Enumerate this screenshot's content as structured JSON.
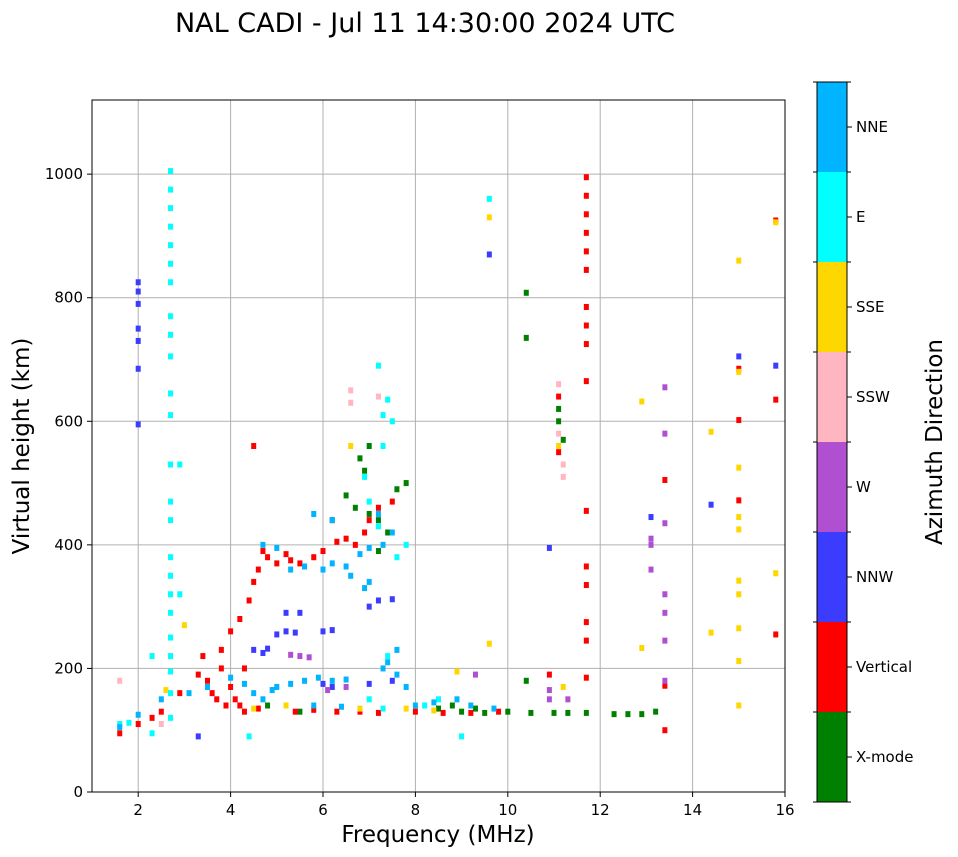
{
  "chart_data": {
    "type": "scatter",
    "title": "NAL CADI - Jul 11 14:30:00 2024 UTC",
    "xlabel": "Frequency (MHz)",
    "ylabel": "Virtual height (km)",
    "xlim": [
      1,
      16
    ],
    "ylim": [
      0,
      1120
    ],
    "xticks": [
      "2",
      "4",
      "6",
      "8",
      "10",
      "12",
      "14",
      "16"
    ],
    "yticks": [
      "0",
      "200",
      "400",
      "600",
      "800",
      "1000"
    ],
    "grid": true,
    "colorbar": {
      "label": "Azimuth Direction",
      "categories": [
        {
          "name": "X-mode",
          "color": "#008000"
        },
        {
          "name": "Vertical",
          "color": "#ff0000"
        },
        {
          "name": "NNW",
          "color": "#3c3cff"
        },
        {
          "name": "W",
          "color": "#b050d0"
        },
        {
          "name": "SSW",
          "color": "#ffb6c1"
        },
        {
          "name": "SSE",
          "color": "#ffd700"
        },
        {
          "name": "E",
          "color": "#00ffff"
        },
        {
          "name": "NNE",
          "color": "#00b4ff"
        }
      ]
    },
    "series": [
      {
        "name": "X-mode",
        "color": "#008000",
        "points": [
          [
            6.5,
            480
          ],
          [
            6.7,
            460
          ],
          [
            7.0,
            450
          ],
          [
            7.2,
            440
          ],
          [
            7.4,
            420
          ],
          [
            7.6,
            490
          ],
          [
            7.8,
            500
          ],
          [
            6.2,
            440
          ],
          [
            7.0,
            560
          ],
          [
            6.9,
            520
          ],
          [
            8.5,
            135
          ],
          [
            9.0,
            130
          ],
          [
            9.5,
            128
          ],
          [
            10.0,
            130
          ],
          [
            10.5,
            128
          ],
          [
            11.0,
            128
          ],
          [
            11.3,
            128
          ],
          [
            11.7,
            128
          ],
          [
            12.3,
            126
          ],
          [
            12.6,
            126
          ],
          [
            12.9,
            126
          ],
          [
            13.2,
            130
          ],
          [
            10.4,
            180
          ],
          [
            10.4,
            735
          ],
          [
            10.4,
            808
          ],
          [
            11.1,
            600
          ],
          [
            11.1,
            620
          ],
          [
            11.2,
            570
          ],
          [
            7.2,
            390
          ],
          [
            6.8,
            540
          ],
          [
            5.5,
            130
          ],
          [
            4.8,
            140
          ],
          [
            8.8,
            140
          ],
          [
            9.3,
            135
          ]
        ]
      },
      {
        "name": "Vertical",
        "color": "#ff0000",
        "points": [
          [
            1.6,
            95
          ],
          [
            2.0,
            110
          ],
          [
            2.3,
            120
          ],
          [
            2.5,
            130
          ],
          [
            2.9,
            160
          ],
          [
            3.3,
            190
          ],
          [
            3.4,
            220
          ],
          [
            3.5,
            180
          ],
          [
            3.6,
            160
          ],
          [
            3.7,
            150
          ],
          [
            3.8,
            200
          ],
          [
            3.9,
            140
          ],
          [
            4.0,
            170
          ],
          [
            4.0,
            260
          ],
          [
            4.1,
            150
          ],
          [
            4.2,
            280
          ],
          [
            4.2,
            140
          ],
          [
            4.3,
            130
          ],
          [
            4.4,
            310
          ],
          [
            4.5,
            340
          ],
          [
            4.6,
            360
          ],
          [
            4.6,
            135
          ],
          [
            4.7,
            390
          ],
          [
            4.8,
            380
          ],
          [
            5.0,
            370
          ],
          [
            5.2,
            385
          ],
          [
            5.3,
            375
          ],
          [
            5.5,
            370
          ],
          [
            5.8,
            380
          ],
          [
            6.0,
            390
          ],
          [
            6.3,
            405
          ],
          [
            6.5,
            410
          ],
          [
            6.7,
            400
          ],
          [
            6.9,
            420
          ],
          [
            7.0,
            440
          ],
          [
            7.2,
            460
          ],
          [
            7.5,
            470
          ],
          [
            5.4,
            130
          ],
          [
            5.8,
            133
          ],
          [
            6.3,
            130
          ],
          [
            6.8,
            130
          ],
          [
            7.2,
            128
          ],
          [
            8.0,
            130
          ],
          [
            8.6,
            128
          ],
          [
            9.2,
            128
          ],
          [
            9.8,
            130
          ],
          [
            10.9,
            190
          ],
          [
            11.1,
            550
          ],
          [
            11.1,
            640
          ],
          [
            11.7,
            995
          ],
          [
            11.7,
            965
          ],
          [
            11.7,
            935
          ],
          [
            11.7,
            905
          ],
          [
            11.7,
            875
          ],
          [
            11.7,
            845
          ],
          [
            11.7,
            785
          ],
          [
            11.7,
            755
          ],
          [
            11.7,
            725
          ],
          [
            11.7,
            665
          ],
          [
            11.7,
            455
          ],
          [
            11.7,
            365
          ],
          [
            11.7,
            335
          ],
          [
            11.7,
            275
          ],
          [
            11.7,
            245
          ],
          [
            11.7,
            185
          ],
          [
            13.4,
            505
          ],
          [
            13.4,
            172
          ],
          [
            13.4,
            100
          ],
          [
            15.0,
            685
          ],
          [
            15.0,
            602
          ],
          [
            15.0,
            472
          ],
          [
            15.8,
            635
          ],
          [
            15.8,
            255
          ],
          [
            15.8,
            925
          ],
          [
            4.5,
            560
          ],
          [
            4.3,
            200
          ],
          [
            3.8,
            230
          ]
        ]
      },
      {
        "name": "NNW",
        "color": "#3c3cff",
        "points": [
          [
            2.0,
            595
          ],
          [
            2.0,
            685
          ],
          [
            2.0,
            730
          ],
          [
            2.0,
            750
          ],
          [
            2.0,
            790
          ],
          [
            2.0,
            810
          ],
          [
            2.0,
            825
          ],
          [
            4.5,
            230
          ],
          [
            4.7,
            225
          ],
          [
            4.8,
            232
          ],
          [
            5.0,
            255
          ],
          [
            5.2,
            260
          ],
          [
            5.4,
            258
          ],
          [
            5.2,
            290
          ],
          [
            5.5,
            290
          ],
          [
            6.0,
            260
          ],
          [
            6.2,
            262
          ],
          [
            7.0,
            300
          ],
          [
            7.2,
            310
          ],
          [
            7.5,
            312
          ],
          [
            7.0,
            175
          ],
          [
            7.5,
            180
          ],
          [
            6.2,
            170
          ],
          [
            6.0,
            175
          ],
          [
            10.9,
            395
          ],
          [
            13.1,
            445
          ],
          [
            14.4,
            465
          ],
          [
            15.0,
            705
          ],
          [
            15.8,
            690
          ],
          [
            3.3,
            90
          ],
          [
            9.6,
            870
          ]
        ]
      },
      {
        "name": "W",
        "color": "#b050d0",
        "points": [
          [
            5.3,
            222
          ],
          [
            5.5,
            220
          ],
          [
            5.7,
            218
          ],
          [
            10.9,
            165
          ],
          [
            10.9,
            150
          ],
          [
            11.3,
            150
          ],
          [
            13.1,
            360
          ],
          [
            13.1,
            400
          ],
          [
            13.1,
            410
          ],
          [
            13.4,
            655
          ],
          [
            13.4,
            580
          ],
          [
            13.4,
            435
          ],
          [
            13.4,
            320
          ],
          [
            13.4,
            290
          ],
          [
            13.4,
            245
          ],
          [
            13.4,
            180
          ],
          [
            6.1,
            165
          ],
          [
            6.5,
            170
          ],
          [
            9.3,
            190
          ]
        ]
      },
      {
        "name": "SSW",
        "color": "#ffb6c1",
        "points": [
          [
            1.6,
            180
          ],
          [
            6.6,
            650
          ],
          [
            6.6,
            630
          ],
          [
            11.1,
            660
          ],
          [
            11.1,
            580
          ],
          [
            11.2,
            510
          ],
          [
            2.5,
            110
          ],
          [
            7.2,
            640
          ],
          [
            11.2,
            530
          ]
        ]
      },
      {
        "name": "SSE",
        "color": "#ffd700",
        "points": [
          [
            4.5,
            135
          ],
          [
            5.2,
            140
          ],
          [
            6.8,
            135
          ],
          [
            7.8,
            135
          ],
          [
            8.4,
            132
          ],
          [
            8.9,
            195
          ],
          [
            9.6,
            930
          ],
          [
            9.6,
            240
          ],
          [
            12.9,
            632
          ],
          [
            12.9,
            233
          ],
          [
            14.4,
            583
          ],
          [
            14.4,
            258
          ],
          [
            15.0,
            860
          ],
          [
            15.0,
            680
          ],
          [
            15.0,
            525
          ],
          [
            15.0,
            445
          ],
          [
            15.0,
            425
          ],
          [
            15.0,
            342
          ],
          [
            15.0,
            320
          ],
          [
            15.0,
            265
          ],
          [
            15.0,
            212
          ],
          [
            15.0,
            140
          ],
          [
            15.8,
            354
          ],
          [
            15.8,
            922
          ],
          [
            11.1,
            560
          ],
          [
            11.2,
            170
          ],
          [
            6.6,
            560
          ],
          [
            2.6,
            165
          ],
          [
            3.0,
            270
          ]
        ]
      },
      {
        "name": "E",
        "color": "#00ffff",
        "points": [
          [
            1.6,
            110
          ],
          [
            1.8,
            112
          ],
          [
            2.3,
            220
          ],
          [
            2.3,
            95
          ],
          [
            2.7,
            1005
          ],
          [
            2.7,
            975
          ],
          [
            2.7,
            945
          ],
          [
            2.7,
            915
          ],
          [
            2.7,
            885
          ],
          [
            2.7,
            855
          ],
          [
            2.7,
            825
          ],
          [
            2.7,
            770
          ],
          [
            2.7,
            740
          ],
          [
            2.7,
            705
          ],
          [
            2.7,
            645
          ],
          [
            2.7,
            610
          ],
          [
            2.7,
            530
          ],
          [
            2.7,
            470
          ],
          [
            2.7,
            440
          ],
          [
            2.7,
            380
          ],
          [
            2.7,
            350
          ],
          [
            2.7,
            320
          ],
          [
            2.7,
            290
          ],
          [
            2.7,
            250
          ],
          [
            2.7,
            220
          ],
          [
            2.7,
            195
          ],
          [
            2.7,
            160
          ],
          [
            2.7,
            120
          ],
          [
            2.9,
            530
          ],
          [
            2.9,
            320
          ],
          [
            4.4,
            90
          ],
          [
            6.9,
            510
          ],
          [
            7.0,
            470
          ],
          [
            7.2,
            430
          ],
          [
            7.3,
            560
          ],
          [
            7.3,
            610
          ],
          [
            7.4,
            635
          ],
          [
            7.5,
            600
          ],
          [
            7.2,
            690
          ],
          [
            7.6,
            380
          ],
          [
            7.8,
            400
          ],
          [
            8.2,
            140
          ],
          [
            8.5,
            150
          ],
          [
            9.0,
            90
          ],
          [
            9.6,
            960
          ],
          [
            7.4,
            220
          ],
          [
            7.0,
            150
          ],
          [
            7.3,
            135
          ]
        ]
      },
      {
        "name": "NNE",
        "color": "#00b4ff",
        "points": [
          [
            1.6,
            105
          ],
          [
            2.0,
            125
          ],
          [
            2.5,
            150
          ],
          [
            3.1,
            160
          ],
          [
            3.5,
            170
          ],
          [
            4.0,
            185
          ],
          [
            4.3,
            175
          ],
          [
            4.5,
            160
          ],
          [
            4.7,
            150
          ],
          [
            4.9,
            165
          ],
          [
            5.0,
            170
          ],
          [
            5.3,
            175
          ],
          [
            5.6,
            180
          ],
          [
            5.9,
            185
          ],
          [
            6.2,
            180
          ],
          [
            6.5,
            182
          ],
          [
            4.7,
            400
          ],
          [
            5.0,
            395
          ],
          [
            5.3,
            360
          ],
          [
            5.6,
            365
          ],
          [
            6.0,
            360
          ],
          [
            6.2,
            370
          ],
          [
            6.5,
            365
          ],
          [
            6.8,
            385
          ],
          [
            7.0,
            395
          ],
          [
            7.3,
            400
          ],
          [
            7.5,
            420
          ],
          [
            7.2,
            450
          ],
          [
            7.6,
            230
          ],
          [
            7.4,
            210
          ],
          [
            7.6,
            190
          ],
          [
            7.3,
            200
          ],
          [
            8.0,
            140
          ],
          [
            8.4,
            145
          ],
          [
            8.9,
            150
          ],
          [
            9.2,
            140
          ],
          [
            9.7,
            135
          ],
          [
            5.8,
            140
          ],
          [
            6.4,
            138
          ],
          [
            6.6,
            350
          ],
          [
            6.9,
            330
          ],
          [
            7.0,
            340
          ],
          [
            7.8,
            170
          ],
          [
            5.8,
            450
          ],
          [
            6.2,
            440
          ]
        ]
      }
    ]
  }
}
